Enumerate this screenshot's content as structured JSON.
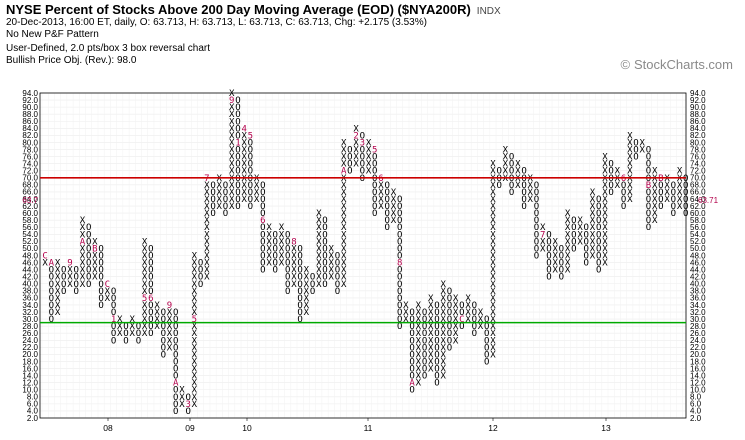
{
  "header": {
    "title": "NYSE Percent of Stocks Above 200 Day Moving Average (EOD) ($NYA200R)",
    "exchange": "INDX",
    "quote_line": "20-Dec-2013, 16:00 ET, daily, O: 63.713, H: 63.713, L: 63.713, C: 63.713, Chg: +2.175 (3.53%)",
    "pattern": "No New P&F Pattern",
    "box_setting": "User-Defined, 2.0 pts/box 3 box reversal chart",
    "price_objective": "Bullish Price Obj. (Rev.): 98.0"
  },
  "brand": "StockCharts.com",
  "colors": {
    "x": "#000000",
    "o": "#000000",
    "month_marker": "#b3004b",
    "resistance": "#cc0000",
    "support": "#00aa00",
    "last_price": "#b3004b"
  },
  "chart_data": {
    "type": "point-and-figure",
    "box_size": 2.0,
    "reversal": 3,
    "ylim": [
      2,
      94
    ],
    "y_ticks": [
      2,
      4,
      6,
      8,
      10,
      12,
      14,
      16,
      18,
      20,
      22,
      24,
      26,
      28,
      30,
      32,
      34,
      36,
      38,
      40,
      42,
      44,
      46,
      48,
      50,
      52,
      54,
      56,
      58,
      60,
      62,
      64,
      66,
      68,
      70,
      72,
      74,
      76,
      78,
      80,
      82,
      84,
      86,
      88,
      90,
      92,
      94
    ],
    "x_labels": [
      "08",
      "09",
      "10",
      "11",
      "12",
      "13"
    ],
    "last_price": 63.71,
    "resistance_line": 70,
    "support_line": 29,
    "columns": [
      {
        "t": "X",
        "lo": 46,
        "hi": 48
      },
      {
        "t": "O",
        "lo": 30,
        "hi": 46
      },
      {
        "t": "X",
        "lo": 32,
        "hi": 46
      },
      {
        "t": "O",
        "lo": 38,
        "hi": 44
      },
      {
        "t": "X",
        "lo": 40,
        "hi": 46
      },
      {
        "t": "O",
        "lo": 38,
        "hi": 44
      },
      {
        "t": "X",
        "lo": 40,
        "hi": 58
      },
      {
        "t": "O",
        "lo": 40,
        "hi": 56
      },
      {
        "t": "X",
        "lo": 42,
        "hi": 52
      },
      {
        "t": "O",
        "lo": 34,
        "hi": 50
      },
      {
        "t": "X",
        "lo": 36,
        "hi": 40
      },
      {
        "t": "O",
        "lo": 24,
        "hi": 38
      },
      {
        "t": "X",
        "lo": 26,
        "hi": 30
      },
      {
        "t": "O",
        "lo": 24,
        "hi": 28
      },
      {
        "t": "X",
        "lo": 26,
        "hi": 30
      },
      {
        "t": "O",
        "lo": 24,
        "hi": 28
      },
      {
        "t": "X",
        "lo": 26,
        "hi": 52
      },
      {
        "t": "O",
        "lo": 26,
        "hi": 50
      },
      {
        "t": "X",
        "lo": 28,
        "hi": 34
      },
      {
        "t": "O",
        "lo": 20,
        "hi": 32
      },
      {
        "t": "X",
        "lo": 22,
        "hi": 34
      },
      {
        "t": "O",
        "lo": 4,
        "hi": 32
      },
      {
        "t": "X",
        "lo": 6,
        "hi": 10
      },
      {
        "t": "O",
        "lo": 4,
        "hi": 8
      },
      {
        "t": "X",
        "lo": 6,
        "hi": 48
      },
      {
        "t": "O",
        "lo": 40,
        "hi": 46
      },
      {
        "t": "X",
        "lo": 42,
        "hi": 70
      },
      {
        "t": "O",
        "lo": 60,
        "hi": 68
      },
      {
        "t": "X",
        "lo": 62,
        "hi": 70
      },
      {
        "t": "O",
        "lo": 60,
        "hi": 68
      },
      {
        "t": "X",
        "lo": 62,
        "hi": 94
      },
      {
        "t": "O",
        "lo": 62,
        "hi": 92
      },
      {
        "t": "X",
        "lo": 64,
        "hi": 84
      },
      {
        "t": "O",
        "lo": 62,
        "hi": 82
      },
      {
        "t": "X",
        "lo": 64,
        "hi": 70
      },
      {
        "t": "O",
        "lo": 44,
        "hi": 68
      },
      {
        "t": "X",
        "lo": 46,
        "hi": 56
      },
      {
        "t": "O",
        "lo": 44,
        "hi": 54
      },
      {
        "t": "X",
        "lo": 46,
        "hi": 56
      },
      {
        "t": "O",
        "lo": 38,
        "hi": 54
      },
      {
        "t": "X",
        "lo": 40,
        "hi": 52
      },
      {
        "t": "O",
        "lo": 30,
        "hi": 50
      },
      {
        "t": "X",
        "lo": 32,
        "hi": 44
      },
      {
        "t": "O",
        "lo": 38,
        "hi": 42
      },
      {
        "t": "X",
        "lo": 40,
        "hi": 60
      },
      {
        "t": "O",
        "lo": 40,
        "hi": 58
      },
      {
        "t": "X",
        "lo": 42,
        "hi": 50
      },
      {
        "t": "O",
        "lo": 38,
        "hi": 48
      },
      {
        "t": "X",
        "lo": 40,
        "hi": 80
      },
      {
        "t": "O",
        "lo": 72,
        "hi": 78
      },
      {
        "t": "X",
        "lo": 74,
        "hi": 84
      },
      {
        "t": "O",
        "lo": 70,
        "hi": 82
      },
      {
        "t": "X",
        "lo": 72,
        "hi": 80
      },
      {
        "t": "O",
        "lo": 60,
        "hi": 78
      },
      {
        "t": "X",
        "lo": 62,
        "hi": 70
      },
      {
        "t": "O",
        "lo": 56,
        "hi": 68
      },
      {
        "t": "X",
        "lo": 58,
        "hi": 66
      },
      {
        "t": "O",
        "lo": 28,
        "hi": 64
      },
      {
        "t": "X",
        "lo": 30,
        "hi": 34
      },
      {
        "t": "O",
        "lo": 10,
        "hi": 32
      },
      {
        "t": "X",
        "lo": 12,
        "hi": 34
      },
      {
        "t": "O",
        "lo": 14,
        "hi": 32
      },
      {
        "t": "X",
        "lo": 16,
        "hi": 36
      },
      {
        "t": "O",
        "lo": 12,
        "hi": 34
      },
      {
        "t": "X",
        "lo": 14,
        "hi": 40
      },
      {
        "t": "O",
        "lo": 22,
        "hi": 38
      },
      {
        "t": "X",
        "lo": 24,
        "hi": 36
      },
      {
        "t": "O",
        "lo": 28,
        "hi": 34
      },
      {
        "t": "X",
        "lo": 30,
        "hi": 36
      },
      {
        "t": "O",
        "lo": 26,
        "hi": 34
      },
      {
        "t": "X",
        "lo": 28,
        "hi": 32
      },
      {
        "t": "O",
        "lo": 18,
        "hi": 30
      },
      {
        "t": "X",
        "lo": 20,
        "hi": 74
      },
      {
        "t": "O",
        "lo": 68,
        "hi": 72
      },
      {
        "t": "X",
        "lo": 70,
        "hi": 78
      },
      {
        "t": "O",
        "lo": 66,
        "hi": 76
      },
      {
        "t": "X",
        "lo": 68,
        "hi": 74
      },
      {
        "t": "O",
        "lo": 62,
        "hi": 72
      },
      {
        "t": "X",
        "lo": 64,
        "hi": 70
      },
      {
        "t": "O",
        "lo": 48,
        "hi": 68
      },
      {
        "t": "X",
        "lo": 50,
        "hi": 56
      },
      {
        "t": "O",
        "lo": 42,
        "hi": 54
      },
      {
        "t": "X",
        "lo": 44,
        "hi": 52
      },
      {
        "t": "O",
        "lo": 42,
        "hi": 50
      },
      {
        "t": "X",
        "lo": 44,
        "hi": 60
      },
      {
        "t": "O",
        "lo": 50,
        "hi": 58
      },
      {
        "t": "X",
        "lo": 52,
        "hi": 58
      },
      {
        "t": "O",
        "lo": 46,
        "hi": 56
      },
      {
        "t": "X",
        "lo": 48,
        "hi": 66
      },
      {
        "t": "O",
        "lo": 44,
        "hi": 64
      },
      {
        "t": "X",
        "lo": 46,
        "hi": 76
      },
      {
        "t": "O",
        "lo": 66,
        "hi": 74
      },
      {
        "t": "X",
        "lo": 68,
        "hi": 72
      },
      {
        "t": "O",
        "lo": 62,
        "hi": 70
      },
      {
        "t": "X",
        "lo": 64,
        "hi": 82
      },
      {
        "t": "O",
        "lo": 76,
        "hi": 80
      },
      {
        "t": "X",
        "lo": 78,
        "hi": 80
      },
      {
        "t": "O",
        "lo": 56,
        "hi": 78
      },
      {
        "t": "X",
        "lo": 58,
        "hi": 72
      },
      {
        "t": "O",
        "lo": 62,
        "hi": 70
      },
      {
        "t": "X",
        "lo": 64,
        "hi": 70
      },
      {
        "t": "O",
        "lo": 60,
        "hi": 68
      },
      {
        "t": "X",
        "lo": 62,
        "hi": 72
      },
      {
        "t": "O",
        "lo": 60,
        "hi": 70
      }
    ],
    "month_markers": [
      {
        "c": 0,
        "v": 48,
        "m": "C"
      },
      {
        "c": 1,
        "v": 46,
        "m": "A"
      },
      {
        "c": 4,
        "v": 46,
        "m": "9"
      },
      {
        "c": 6,
        "v": 52,
        "m": "A"
      },
      {
        "c": 8,
        "v": 50,
        "m": "B"
      },
      {
        "c": 10,
        "v": 40,
        "m": "C"
      },
      {
        "c": 11,
        "v": 30,
        "m": "1"
      },
      {
        "c": 16,
        "v": 36,
        "m": "5"
      },
      {
        "c": 17,
        "v": 36,
        "m": "6"
      },
      {
        "c": 20,
        "v": 34,
        "m": "9"
      },
      {
        "c": 21,
        "v": 12,
        "m": "A"
      },
      {
        "c": 23,
        "v": 6,
        "m": "3"
      },
      {
        "c": 24,
        "v": 30,
        "m": "5"
      },
      {
        "c": 26,
        "v": 70,
        "m": "7"
      },
      {
        "c": 30,
        "v": 92,
        "m": "9"
      },
      {
        "c": 31,
        "v": 80,
        "m": "1"
      },
      {
        "c": 32,
        "v": 84,
        "m": "4"
      },
      {
        "c": 33,
        "v": 82,
        "m": "5"
      },
      {
        "c": 35,
        "v": 58,
        "m": "6"
      },
      {
        "c": 39,
        "v": 36,
        "m": "7"
      },
      {
        "c": 40,
        "v": 52,
        "m": "8"
      },
      {
        "c": 46,
        "v": 38,
        "m": "9"
      },
      {
        "c": 48,
        "v": 72,
        "m": "A"
      },
      {
        "c": 50,
        "v": 82,
        "m": "2"
      },
      {
        "c": 51,
        "v": 80,
        "m": "3"
      },
      {
        "c": 53,
        "v": 78,
        "m": "5"
      },
      {
        "c": 54,
        "v": 70,
        "m": "6"
      },
      {
        "c": 57,
        "v": 46,
        "m": "8"
      },
      {
        "c": 59,
        "v": 12,
        "m": "A"
      },
      {
        "c": 67,
        "v": 30,
        "m": "C"
      },
      {
        "c": 70,
        "v": 38,
        "m": "1"
      },
      {
        "c": 72,
        "v": 76,
        "m": "3"
      },
      {
        "c": 73,
        "v": 76,
        "m": "4"
      },
      {
        "c": 77,
        "v": 50,
        "m": "6"
      },
      {
        "c": 80,
        "v": 54,
        "m": "7"
      },
      {
        "c": 83,
        "v": 54,
        "m": "8"
      },
      {
        "c": 85,
        "v": 64,
        "m": "9"
      },
      {
        "c": 88,
        "v": 70,
        "m": "9"
      },
      {
        "c": 91,
        "v": 80,
        "m": "4"
      },
      {
        "c": 92,
        "v": 80,
        "m": "5"
      },
      {
        "c": 93,
        "v": 70,
        "m": "6"
      },
      {
        "c": 95,
        "v": 60,
        "m": "9"
      },
      {
        "c": 97,
        "v": 68,
        "m": "B"
      },
      {
        "c": 99,
        "v": 70,
        "m": "B"
      }
    ]
  }
}
